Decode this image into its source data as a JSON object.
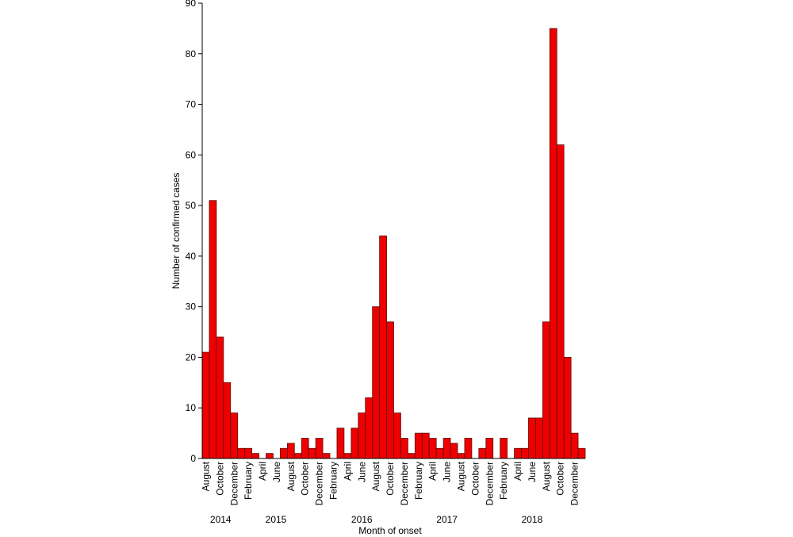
{
  "chart_data": {
    "type": "bar",
    "title": "",
    "xlabel": "Month of onset",
    "ylabel": "Number of confirmed cases",
    "ylim": [
      0,
      90
    ],
    "yticks": [
      0,
      10,
      20,
      30,
      40,
      50,
      60,
      70,
      80,
      90
    ],
    "grid": false,
    "bar_color": "#ee0000",
    "categories": [
      "Aug 2014",
      "Sep 2014",
      "Oct 2014",
      "Nov 2014",
      "Dec 2014",
      "Jan 2015",
      "Feb 2015",
      "Mar 2015",
      "Apr 2015",
      "May 2015",
      "Jun 2015",
      "Jul 2015",
      "Aug 2015",
      "Sep 2015",
      "Oct 2015",
      "Nov 2015",
      "Dec 2015",
      "Jan 2016",
      "Feb 2016",
      "Mar 2016",
      "Apr 2016",
      "May 2016",
      "Jun 2016",
      "Jul 2016",
      "Aug 2016",
      "Sep 2016",
      "Oct 2016",
      "Nov 2016",
      "Dec 2016",
      "Jan 2017",
      "Feb 2017",
      "Mar 2017",
      "Apr 2017",
      "May 2017",
      "Jun 2017",
      "Jul 2017",
      "Aug 2017",
      "Sep 2017",
      "Oct 2017",
      "Nov 2017",
      "Dec 2017",
      "Jan 2018",
      "Feb 2018",
      "Mar 2018",
      "Apr 2018",
      "May 2018",
      "Jun 2018",
      "Jul 2018",
      "Aug 2018",
      "Sep 2018",
      "Oct 2018",
      "Nov 2018",
      "Dec 2018",
      "Jan 2019"
    ],
    "values": [
      21,
      51,
      24,
      15,
      9,
      2,
      2,
      1,
      0,
      1,
      0,
      2,
      3,
      1,
      4,
      2,
      4,
      1,
      0,
      6,
      1,
      6,
      9,
      12,
      30,
      44,
      27,
      9,
      4,
      1,
      5,
      5,
      4,
      2,
      4,
      3,
      1,
      4,
      0,
      2,
      4,
      0,
      4,
      0,
      2,
      2,
      8,
      8,
      27,
      85,
      62,
      20,
      5,
      2
    ],
    "tick_labels": [
      "August",
      "October",
      "December",
      "February",
      "April",
      "June",
      "August",
      "October",
      "December",
      "February",
      "April",
      "June",
      "August",
      "October",
      "December",
      "February",
      "April",
      "June",
      "August",
      "October",
      "December",
      "February",
      "April",
      "June",
      "August",
      "October",
      "December"
    ],
    "year_labels": [
      "2014",
      "2015",
      "2016",
      "2017",
      "2018"
    ]
  }
}
